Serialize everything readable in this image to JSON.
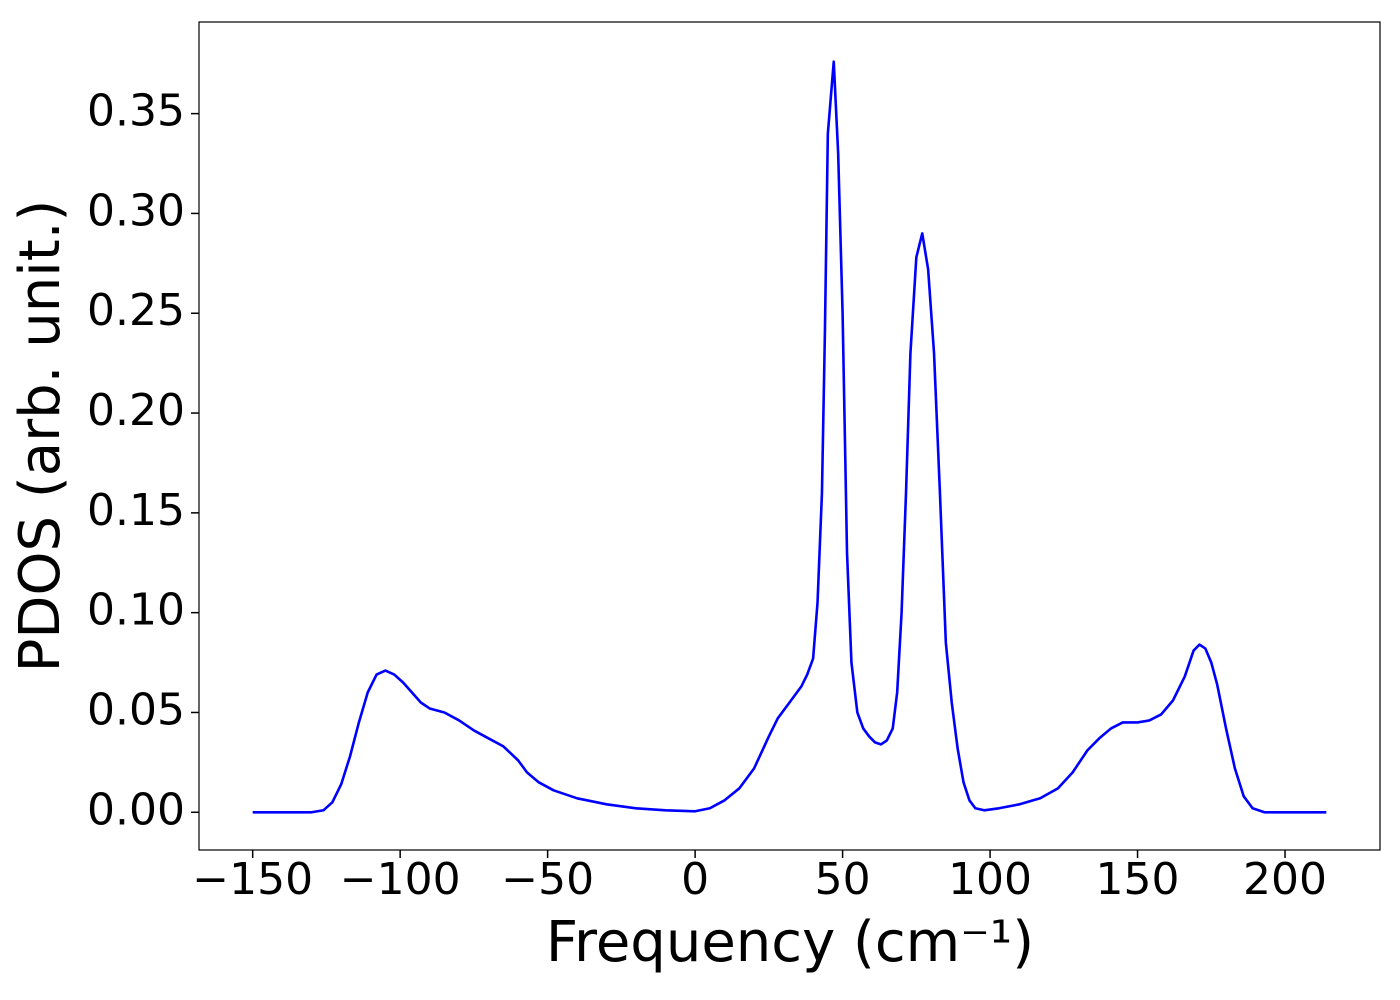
{
  "chart_data": {
    "type": "line",
    "xlabel": "Frequency (cm⁻¹)",
    "ylabel": "PDOS (arb. unit.)",
    "xlim": [
      -168.2,
      232.2
    ],
    "ylim": [
      -0.0189,
      0.3959
    ],
    "xticks": [
      {
        "value": -150,
        "label": "−150"
      },
      {
        "value": -100,
        "label": "−100"
      },
      {
        "value": -50,
        "label": "−50"
      },
      0,
      50,
      100,
      150,
      200
    ],
    "yticks": [
      {
        "value": 0,
        "label": "0.00"
      },
      {
        "value": 0.05,
        "label": "0.05"
      },
      {
        "value": 0.1,
        "label": "0.10"
      },
      {
        "value": 0.15,
        "label": "0.15"
      },
      {
        "value": 0.2,
        "label": "0.20"
      },
      {
        "value": 0.25,
        "label": "0.25"
      },
      {
        "value": 0.3,
        "label": "0.30"
      },
      {
        "value": 0.35,
        "label": "0.35"
      }
    ],
    "grid": false,
    "x": [
      -150,
      -130,
      -126,
      -123,
      -120,
      -117,
      -114,
      -111,
      -108,
      -105,
      -102,
      -99,
      -96,
      -93,
      -90,
      -85,
      -80,
      -75,
      -70,
      -65,
      -60,
      -57,
      -53,
      -48,
      -40,
      -30,
      -20,
      -10,
      0,
      5,
      10,
      15,
      20,
      25,
      28,
      32,
      36,
      38,
      40,
      41.5,
      43,
      44,
      45,
      47,
      48.5,
      50,
      51.5,
      53,
      55,
      57,
      59,
      61,
      63,
      65,
      67,
      68.5,
      70,
      71.5,
      73,
      75,
      77,
      79,
      81,
      83,
      85,
      87,
      89,
      91,
      93,
      95,
      98,
      103,
      110,
      117,
      123,
      128,
      133,
      137,
      141,
      145,
      150,
      154,
      158,
      162,
      166,
      169,
      171,
      173,
      175,
      177,
      180,
      183,
      186,
      189,
      193,
      214
    ],
    "series": [
      {
        "color": "#0000ff",
        "values": [
          0,
          0,
          0.001,
          0.005,
          0.014,
          0.028,
          0.045,
          0.06,
          0.069,
          0.071,
          0.069,
          0.065,
          0.06,
          0.055,
          0.052,
          0.05,
          0.046,
          0.041,
          0.037,
          0.033,
          0.026,
          0.02,
          0.015,
          0.011,
          0.007,
          0.004,
          0.002,
          0.001,
          0.0005,
          0.002,
          0.006,
          0.012,
          0.022,
          0.038,
          0.047,
          0.055,
          0.063,
          0.069,
          0.077,
          0.105,
          0.16,
          0.24,
          0.34,
          0.376,
          0.33,
          0.25,
          0.13,
          0.075,
          0.05,
          0.042,
          0.038,
          0.035,
          0.034,
          0.036,
          0.042,
          0.06,
          0.1,
          0.16,
          0.23,
          0.278,
          0.29,
          0.272,
          0.23,
          0.16,
          0.085,
          0.055,
          0.032,
          0.015,
          0.006,
          0.002,
          0.001,
          0.002,
          0.004,
          0.007,
          0.012,
          0.02,
          0.031,
          0.037,
          0.042,
          0.045,
          0.045,
          0.046,
          0.049,
          0.056,
          0.068,
          0.081,
          0.084,
          0.082,
          0.075,
          0.064,
          0.042,
          0.022,
          0.008,
          0.002,
          0,
          0
        ]
      }
    ]
  }
}
